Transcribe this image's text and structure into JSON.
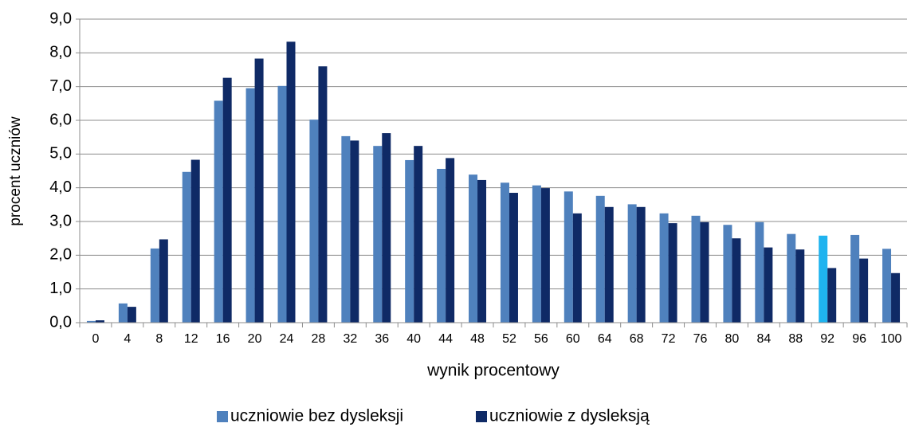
{
  "chart_data": {
    "type": "bar",
    "x_label": "wynik procentowy",
    "y_label": "procent uczniów",
    "categories": [
      "0",
      "4",
      "8",
      "12",
      "16",
      "20",
      "24",
      "28",
      "32",
      "36",
      "40",
      "44",
      "48",
      "52",
      "56",
      "60",
      "64",
      "68",
      "72",
      "76",
      "80",
      "84",
      "88",
      "92",
      "96",
      "100"
    ],
    "series": [
      {
        "name": "uczniowie bez dysleksji",
        "color": "#4f81bd",
        "point_colors": [
          "#4f81bd",
          "#4f81bd",
          "#4f81bd",
          "#4f81bd",
          "#4f81bd",
          "#4f81bd",
          "#4f81bd",
          "#4f81bd",
          "#4f81bd",
          "#4f81bd",
          "#4f81bd",
          "#4f81bd",
          "#4f81bd",
          "#4f81bd",
          "#4f81bd",
          "#4f81bd",
          "#4f81bd",
          "#4f81bd",
          "#4f81bd",
          "#4f81bd",
          "#4f81bd",
          "#4f81bd",
          "#4f81bd",
          "#1fb3ef",
          "#4f81bd",
          "#4f81bd"
        ],
        "values": [
          0.05,
          0.57,
          2.2,
          4.47,
          6.58,
          6.95,
          7.02,
          6.02,
          5.53,
          5.24,
          4.82,
          4.56,
          4.39,
          4.15,
          4.07,
          3.89,
          3.76,
          3.51,
          3.24,
          3.17,
          2.9,
          2.98,
          2.63,
          2.58,
          2.6,
          2.19
        ]
      },
      {
        "name": "uczniowie z dysleksją",
        "color": "#0f2a66",
        "values": [
          0.07,
          0.47,
          2.47,
          4.83,
          7.26,
          7.83,
          8.33,
          7.6,
          5.4,
          5.62,
          5.24,
          4.88,
          4.23,
          3.85,
          3.99,
          3.24,
          3.43,
          3.43,
          2.95,
          2.98,
          2.5,
          2.23,
          2.17,
          1.62,
          1.9,
          1.47
        ]
      }
    ],
    "ylim": [
      0,
      9
    ],
    "yticks": [
      {
        "value": 0,
        "label": "0,0"
      },
      {
        "value": 1,
        "label": "1,0"
      },
      {
        "value": 2,
        "label": "2,0"
      },
      {
        "value": 3,
        "label": "3,0"
      },
      {
        "value": 4,
        "label": "4,0"
      },
      {
        "value": 5,
        "label": "5,0"
      },
      {
        "value": 6,
        "label": "6,0"
      },
      {
        "value": 7,
        "label": "7,0"
      },
      {
        "value": 8,
        "label": "8,0"
      },
      {
        "value": 9,
        "label": "9,0"
      }
    ],
    "grid": true,
    "legend": "bottom"
  }
}
